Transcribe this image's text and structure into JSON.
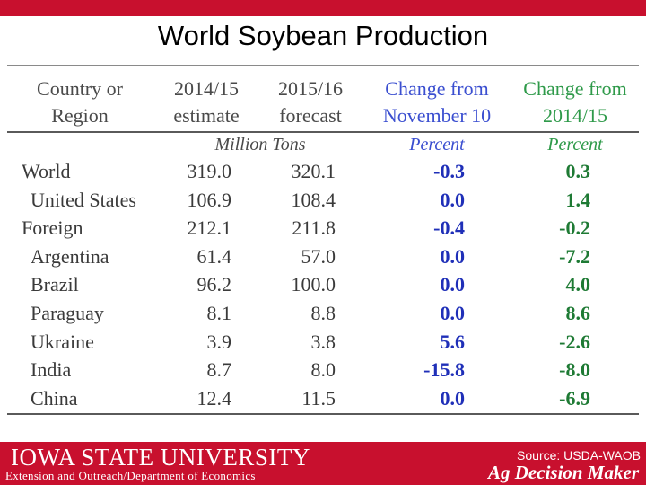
{
  "slide": {
    "title": "World Soybean Production"
  },
  "table": {
    "headers": {
      "region": [
        "Country or",
        "Region"
      ],
      "col2014": [
        "2014/15",
        "estimate"
      ],
      "col2015": [
        "2015/16",
        "forecast"
      ],
      "chg_nov": [
        "Change from",
        "November 10"
      ],
      "chg_prev": [
        "Change from",
        "2014/15"
      ]
    },
    "units": {
      "tons": "Million Tons",
      "pct1": "Percent",
      "pct2": "Percent"
    },
    "rows": [
      {
        "name": "World",
        "indent": 0,
        "v2014": "319.0",
        "v2015": "320.1",
        "chg_nov": "-0.3",
        "chg_prev": "0.3"
      },
      {
        "name": "United States",
        "indent": 1,
        "v2014": "106.9",
        "v2015": "108.4",
        "chg_nov": "0.0",
        "chg_prev": "1.4"
      },
      {
        "name": "Foreign",
        "indent": 0,
        "v2014": "212.1",
        "v2015": "211.8",
        "chg_nov": "-0.4",
        "chg_prev": "-0.2"
      },
      {
        "name": "Argentina",
        "indent": 1,
        "v2014": "61.4",
        "v2015": "57.0",
        "chg_nov": "0.0",
        "chg_prev": "-7.2"
      },
      {
        "name": "Brazil",
        "indent": 1,
        "v2014": "96.2",
        "v2015": "100.0",
        "chg_nov": "0.0",
        "chg_prev": "4.0"
      },
      {
        "name": "Paraguay",
        "indent": 1,
        "v2014": "8.1",
        "v2015": "8.8",
        "chg_nov": "0.0",
        "chg_prev": "8.6"
      },
      {
        "name": "Ukraine",
        "indent": 1,
        "v2014": "3.9",
        "v2015": "3.8",
        "chg_nov": "5.6",
        "chg_prev": "-2.6"
      },
      {
        "name": "India",
        "indent": 1,
        "v2014": "8.7",
        "v2015": "8.0",
        "chg_nov": "-15.8",
        "chg_prev": "-8.0"
      },
      {
        "name": "China",
        "indent": 1,
        "v2014": "12.4",
        "v2015": "11.5",
        "chg_nov": "0.0",
        "chg_prev": "-6.9"
      }
    ]
  },
  "footer": {
    "university": "IOWA STATE UNIVERSITY",
    "subtitle": "Extension and Outreach/Department of Economics",
    "source": "Source: USDA-WAOB",
    "brand": "Ag Decision Maker"
  },
  "colors": {
    "brand_red": "#c8102e",
    "change_blue": "#1f2fb8",
    "change_green": "#1e7a34"
  }
}
